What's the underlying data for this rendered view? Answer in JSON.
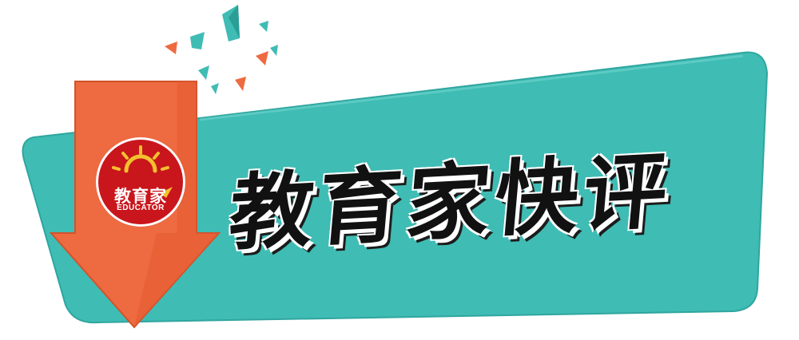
{
  "banner": {
    "title": "教育家快评",
    "colors": {
      "teal": "#3fbcb4",
      "orange": "#ee6a40",
      "logo_red": "#c9161c",
      "title_ink": "#111111",
      "accent_yellow": "#f2c12e"
    }
  },
  "logo": {
    "name": "教育家",
    "sub": "EDUCATOR",
    "icon": "sun-icon"
  },
  "decorations": {
    "icon": "confetti-shards-icon",
    "colors": [
      "#3fbcb4",
      "#ee6a40"
    ]
  }
}
